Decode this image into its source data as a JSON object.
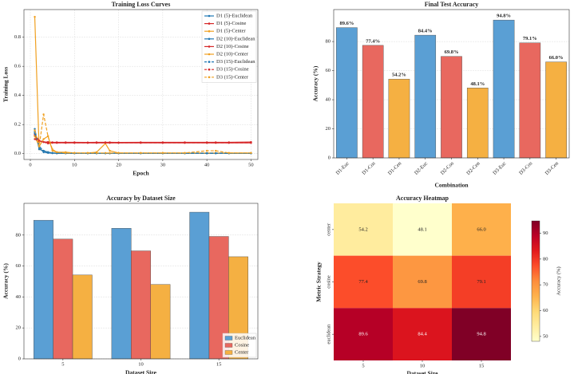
{
  "chart_data": [
    {
      "type": "line",
      "title": "Training Loss Curves",
      "xlabel": "Epoch",
      "ylabel": "Training Loss",
      "x": [
        1,
        2,
        3,
        4,
        5,
        6,
        8,
        10,
        13,
        15,
        17,
        18,
        20,
        25,
        30,
        35,
        40,
        42,
        45,
        50
      ],
      "xlim": [
        -1.45,
        51.55
      ],
      "ylim": [
        -0.04,
        0.99
      ],
      "xticks": [
        0,
        10,
        20,
        30,
        40,
        50
      ],
      "yticks": [
        {
          "value": 0,
          "label": "0.0"
        },
        {
          "value": 0.2,
          "label": "0.2"
        },
        {
          "value": 0.4,
          "label": "0.4"
        },
        {
          "value": 0.6,
          "label": "0.6"
        },
        {
          "value": 0.8,
          "label": "0.8"
        }
      ],
      "grid": true,
      "legend": "upper right",
      "series": [
        {
          "name": "D1 (5)-Euclidean",
          "color": "#1f77b4",
          "dash": false,
          "values": [
            0.15,
            0.04,
            0.01,
            0.005,
            0.003,
            0.002,
            0.002,
            0.002,
            0.002,
            0.002,
            0.002,
            0.002,
            0.002,
            0.002,
            0.002,
            0.002,
            0.002,
            0.002,
            0.002,
            0.002
          ]
        },
        {
          "name": "D1 (5)-Cosine",
          "color": "#d62728",
          "dash": false,
          "values": [
            0.13,
            0.09,
            0.08,
            0.08,
            0.078,
            0.078,
            0.078,
            0.078,
            0.077,
            0.078,
            0.078,
            0.078,
            0.077,
            0.078,
            0.078,
            0.078,
            0.078,
            0.078,
            0.078,
            0.08
          ]
        },
        {
          "name": "D1 (5)-Center",
          "color": "#f0a020",
          "dash": false,
          "values": [
            0.94,
            0.03,
            0.02,
            0.01,
            0.005,
            0.003,
            0.003,
            0.003,
            0.003,
            0.003,
            0.003,
            0.003,
            0.003,
            0.003,
            0.003,
            0.003,
            0.003,
            0.003,
            0.003,
            0.003
          ]
        },
        {
          "name": "D2 (10)-Euclidean",
          "color": "#1f77b4",
          "dash": false,
          "values": [
            0.17,
            0.03,
            0.02,
            0.01,
            0.005,
            0.003,
            0.003,
            0.003,
            0.003,
            0.003,
            0.003,
            0.003,
            0.003,
            0.003,
            0.003,
            0.003,
            0.003,
            0.003,
            0.003,
            0.003
          ]
        },
        {
          "name": "D2 (10)-Cosine",
          "color": "#d62728",
          "dash": false,
          "values": [
            0.12,
            0.09,
            0.08,
            0.075,
            0.075,
            0.074,
            0.074,
            0.074,
            0.074,
            0.074,
            0.074,
            0.074,
            0.074,
            0.074,
            0.074,
            0.074,
            0.074,
            0.074,
            0.074,
            0.074
          ]
        },
        {
          "name": "D2 (10)-Center",
          "color": "#f0a020",
          "dash": false,
          "values": [
            0.12,
            0.05,
            0.1,
            0.12,
            0.02,
            0.01,
            0.01,
            0.005,
            0.005,
            0.01,
            0.07,
            0.02,
            0.005,
            0.005,
            0.005,
            0.005,
            0.005,
            0.005,
            0.005,
            0.005
          ]
        },
        {
          "name": "D3 (15)-Euclidean",
          "color": "#1f77b4",
          "dash": true,
          "values": [
            0.14,
            0.05,
            0.02,
            0.01,
            0.005,
            0.003,
            0.003,
            0.003,
            0.003,
            0.003,
            0.003,
            0.003,
            0.003,
            0.003,
            0.003,
            0.003,
            0.003,
            0.003,
            0.003,
            0.003
          ]
        },
        {
          "name": "D3 (15)-Cosine",
          "color": "#d62728",
          "dash": true,
          "values": [
            0.1,
            0.085,
            0.08,
            0.07,
            0.075,
            0.075,
            0.075,
            0.075,
            0.075,
            0.075,
            0.075,
            0.075,
            0.075,
            0.075,
            0.075,
            0.075,
            0.075,
            0.075,
            0.075,
            0.075
          ]
        },
        {
          "name": "D3 (15)-Center",
          "color": "#f0a020",
          "dash": true,
          "values": [
            0.16,
            0.05,
            0.27,
            0.12,
            0.03,
            0.01,
            0.005,
            0.005,
            0.005,
            0.005,
            0.005,
            0.005,
            0.005,
            0.005,
            0.005,
            0.005,
            0.02,
            0.02,
            0.005,
            0.005
          ]
        }
      ]
    },
    {
      "type": "bar",
      "title": "Final Test Accuracy",
      "xlabel": "Combination",
      "ylabel": "Accuracy (%)",
      "categories": [
        "D1-Euc",
        "D1-Cos",
        "D1-Cen",
        "D2-Euc",
        "D2-Cos",
        "D2-Cen",
        "D3-Euc",
        "D3-Cos",
        "D3-Cen"
      ],
      "values": [
        89.6,
        77.4,
        54.2,
        84.4,
        69.8,
        48.1,
        94.8,
        79.1,
        66.0
      ],
      "value_labels": [
        "89.6%",
        "77.4%",
        "54.2%",
        "84.4%",
        "69.8%",
        "48.1%",
        "94.8%",
        "79.1%",
        "66.0%"
      ],
      "colors": [
        "#5a9fd4",
        "#e8685f",
        "#f5b042",
        "#5a9fd4",
        "#e8685f",
        "#f5b042",
        "#5a9fd4",
        "#e8685f",
        "#f5b042"
      ],
      "ylim": [
        0,
        102
      ],
      "yticks": [
        0,
        20,
        40,
        60,
        80
      ],
      "grid": true
    },
    {
      "type": "bar",
      "title": "Accuracy by Dataset Size",
      "xlabel": "Dataset Size",
      "ylabel": "Accuracy (%)",
      "categories": [
        "5",
        "10",
        "15"
      ],
      "series": [
        {
          "name": "Euclidean",
          "color": "#5a9fd4",
          "values": [
            89.6,
            84.4,
            94.8
          ]
        },
        {
          "name": "Cosine",
          "color": "#e8685f",
          "values": [
            77.4,
            69.8,
            79.1
          ]
        },
        {
          "name": "Center",
          "color": "#f5b042",
          "values": [
            54.2,
            48.1,
            66.0
          ]
        }
      ],
      "ylim": [
        0,
        100.5
      ],
      "yticks": [
        0,
        20,
        40,
        60,
        80
      ],
      "grid": true,
      "legend": "lower right"
    },
    {
      "type": "heatmap",
      "title": "Accuracy Heatmap",
      "xlabel": "Dataset Size",
      "ylabel": "Metric Strategy",
      "x_categories": [
        "5",
        "10",
        "15"
      ],
      "y_categories": [
        "center",
        "cosine",
        "euclidean"
      ],
      "values": [
        [
          54.2,
          48.1,
          66.0
        ],
        [
          77.4,
          69.8,
          79.1
        ],
        [
          89.6,
          84.4,
          94.8
        ]
      ],
      "value_labels": [
        [
          "54.2",
          "48.1",
          "66.0"
        ],
        [
          "77.4",
          "69.8",
          "79.1"
        ],
        [
          "89.6",
          "84.4",
          "94.8"
        ]
      ],
      "colorscale": [
        "#ffffcc",
        "#ffeda0",
        "#fed976",
        "#feb24c",
        "#fd8d3c",
        "#fc4e2a",
        "#e31a1c",
        "#bd0026",
        "#800026"
      ],
      "zlim": [
        48.1,
        94.8
      ],
      "colorbar_ticks": [
        50,
        60,
        70,
        80,
        90
      ],
      "colorbar_label": "Accuracy (%)"
    }
  ]
}
